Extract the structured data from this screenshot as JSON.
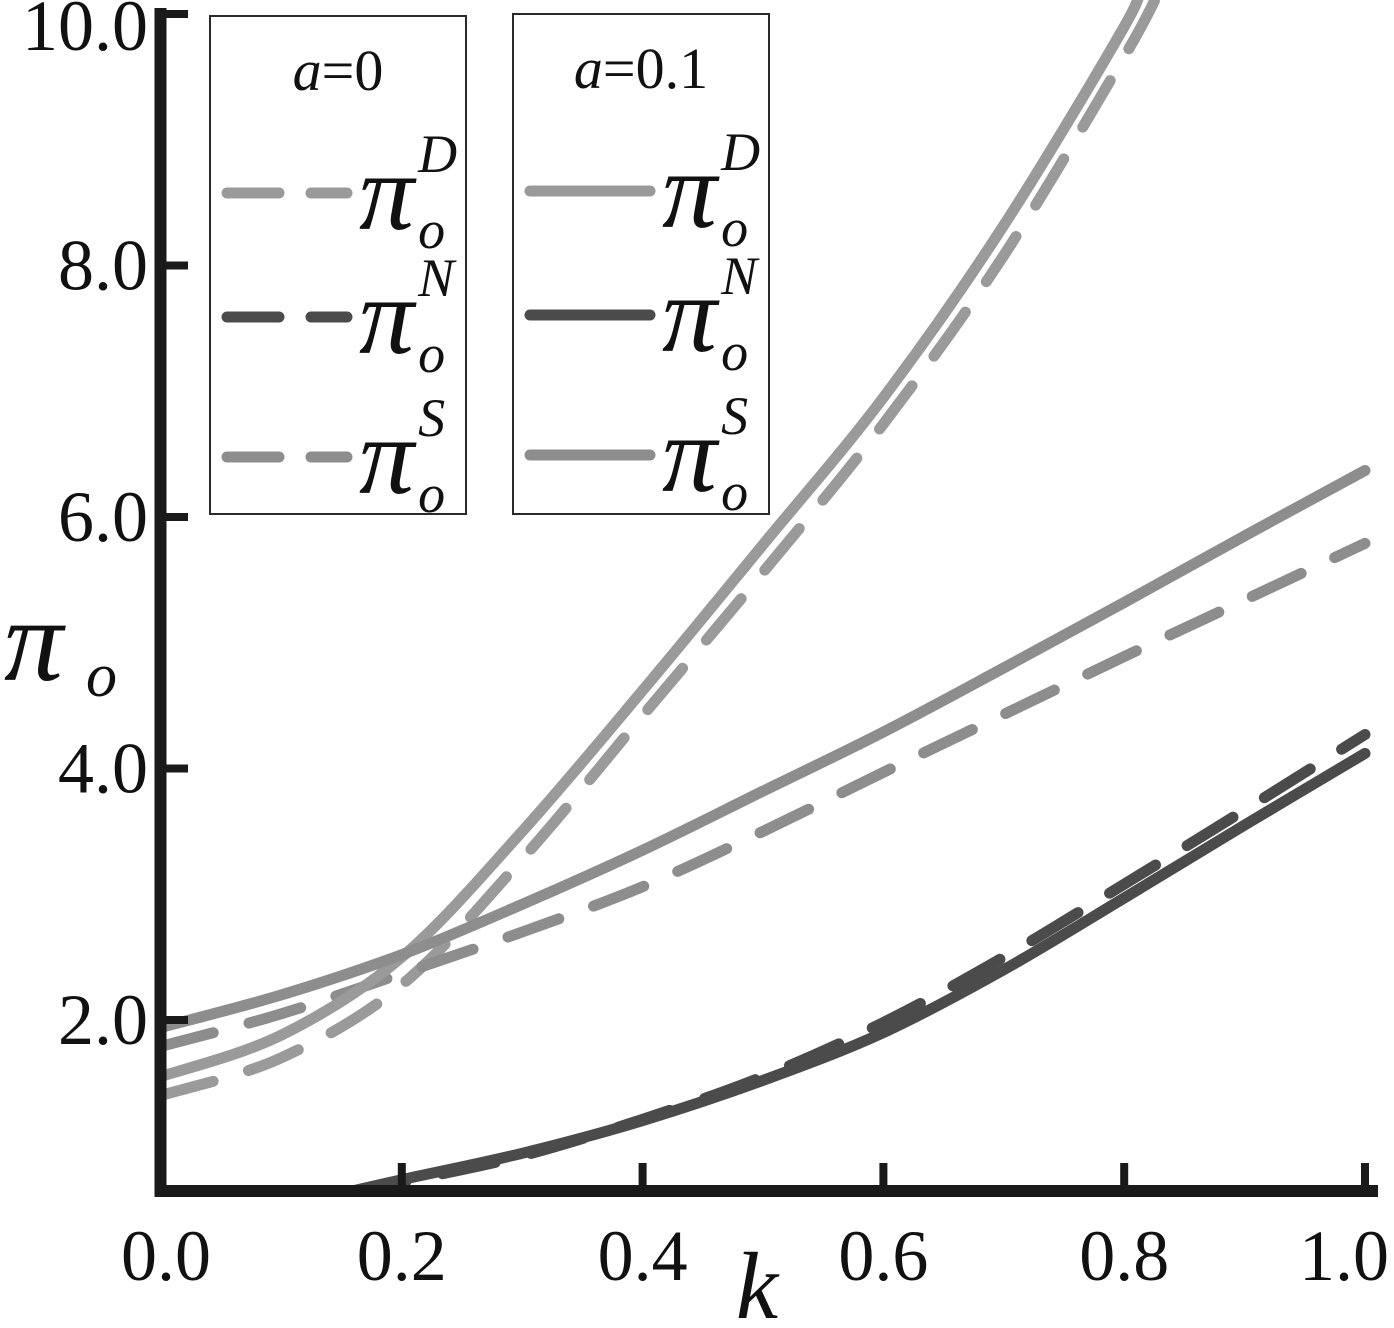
{
  "figure": {
    "ylabel_base": "π",
    "ylabel_sub": "o",
    "xlabel": "k"
  },
  "legend_a0": {
    "title_var": "a",
    "title_rest": "=0",
    "entries": [
      {
        "base": "π",
        "sub": "o",
        "sup": "D"
      },
      {
        "base": "π",
        "sub": "o",
        "sup": "N"
      },
      {
        "base": "π",
        "sub": "o",
        "sup": "S"
      }
    ]
  },
  "legend_a01": {
    "title_var": "a",
    "title_rest": "=0.1",
    "entries": [
      {
        "base": "π",
        "sub": "o",
        "sup": "D"
      },
      {
        "base": "π",
        "sub": "o",
        "sup": "N"
      },
      {
        "base": "π",
        "sub": "o",
        "sup": "S"
      }
    ]
  },
  "chart_data": {
    "type": "line",
    "title": "",
    "xlabel": "k",
    "ylabel": "π_o",
    "xlim": [
      0,
      1
    ],
    "ylim": [
      0.65,
      10
    ],
    "grid": false,
    "axis_color": "#1a1a1a",
    "x_ticks": [
      "0.0",
      "0.2",
      "0.4",
      "0.6",
      "0.8",
      "1.0"
    ],
    "y_ticks": [
      "2.0",
      "4.0",
      "6.0",
      "8.0",
      "10.0"
    ],
    "legend_groups": [
      "a=0 (dashed)",
      "a=0.1 (solid)"
    ],
    "series": [
      {
        "id": "pi_D_a0",
        "name": "π_o^D (a=0)",
        "group": "a=0",
        "style": "dashed",
        "color": "#9a9a9a",
        "x": [
          0,
          0.1,
          0.2,
          0.3,
          0.4,
          0.5,
          0.6,
          0.7,
          0.8,
          0.83
        ],
        "y": [
          1.4,
          1.7,
          2.28,
          3.28,
          4.42,
          5.56,
          6.74,
          8.08,
          9.66,
          10.2
        ]
      },
      {
        "id": "pi_N_a0",
        "name": "π_o^N (a=0)",
        "group": "a=0",
        "style": "dashed",
        "color": "#4b4b4b",
        "x": [
          0.16,
          0.2,
          0.3,
          0.4,
          0.5,
          0.6,
          0.7,
          0.8,
          0.9,
          1.0
        ],
        "y": [
          0.62,
          0.71,
          0.92,
          1.21,
          1.55,
          1.98,
          2.5,
          3.08,
          3.67,
          4.27
        ]
      },
      {
        "id": "pi_S_a0",
        "name": "π_o^S (a=0)",
        "group": "a=0",
        "style": "dashed",
        "color": "#8d8d8d",
        "x": [
          0,
          0.1,
          0.2,
          0.3,
          0.4,
          0.5,
          0.6,
          0.7,
          0.8,
          0.9,
          1.0
        ],
        "y": [
          1.79,
          2.05,
          2.37,
          2.7,
          3.06,
          3.5,
          3.97,
          4.43,
          4.89,
          5.34,
          5.79
        ]
      },
      {
        "id": "pi_D_a01",
        "name": "π_o^D (a=0.1)",
        "group": "a=0.1",
        "style": "solid",
        "color": "#9a9a9a",
        "x": [
          0,
          0.1,
          0.2,
          0.3,
          0.4,
          0.5,
          0.6,
          0.7,
          0.8,
          0.812
        ],
        "y": [
          1.55,
          1.88,
          2.5,
          3.5,
          4.62,
          5.78,
          6.95,
          8.32,
          9.9,
          10.2
        ]
      },
      {
        "id": "pi_N_a01",
        "name": "π_o^N (a=0.1)",
        "group": "a=0.1",
        "style": "solid",
        "color": "#4b4b4b",
        "x": [
          0.15,
          0.2,
          0.3,
          0.4,
          0.5,
          0.6,
          0.7,
          0.8,
          0.9,
          1.0
        ],
        "y": [
          0.62,
          0.73,
          0.94,
          1.2,
          1.52,
          1.9,
          2.4,
          2.97,
          3.55,
          4.12
        ]
      },
      {
        "id": "pi_S_a01",
        "name": "π_o^S (a=0.1)",
        "group": "a=0.1",
        "style": "solid",
        "color": "#8d8d8d",
        "x": [
          0,
          0.1,
          0.2,
          0.3,
          0.4,
          0.5,
          0.6,
          0.7,
          0.8,
          0.9,
          1.0
        ],
        "y": [
          1.94,
          2.2,
          2.52,
          2.92,
          3.35,
          3.82,
          4.29,
          4.8,
          5.32,
          5.85,
          6.37
        ]
      }
    ]
  }
}
